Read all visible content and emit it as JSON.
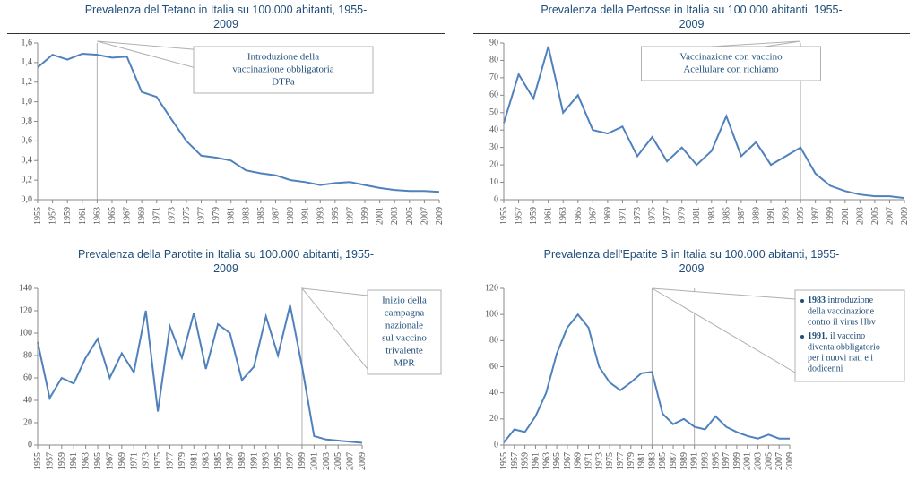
{
  "global": {
    "line_color": "#4f81bd",
    "line_width": 2,
    "title_color": "#1f4e79",
    "axis_color": "#888888",
    "grid_color": "#e0e0e0",
    "callout_border": "#b0b0b0",
    "font_family": "Verdana",
    "title_fontsize": 12.5,
    "tick_fontsize": 10,
    "callout_fontsize": 11,
    "years": [
      1955,
      1957,
      1959,
      1961,
      1963,
      1965,
      1967,
      1969,
      1971,
      1973,
      1975,
      1977,
      1979,
      1981,
      1983,
      1985,
      1987,
      1989,
      1991,
      1993,
      1995,
      1997,
      1999,
      2001,
      2003,
      2005,
      2007,
      2009
    ]
  },
  "charts": [
    {
      "id": "tetano",
      "title_l1": "Prevalenza del Tetano in Italia su 100.000 abitanti, 1955-",
      "title_l2": "2009",
      "type": "line",
      "ylim": [
        0.0,
        1.6
      ],
      "ytick_step": 0.2,
      "y_decimals": 1,
      "values": [
        1.35,
        1.48,
        1.43,
        1.49,
        1.48,
        1.45,
        1.46,
        1.1,
        1.05,
        0.82,
        0.6,
        0.45,
        0.43,
        0.4,
        0.3,
        0.27,
        0.25,
        0.2,
        0.18,
        0.15,
        0.17,
        0.18,
        0.15,
        0.12,
        0.1,
        0.09,
        0.09,
        0.08
      ],
      "vlines": [
        1963
      ],
      "callout": {
        "kind": "center",
        "lines": [
          "Introduzione della",
          "vaccinazione obbligatoria",
          "DTPa"
        ]
      }
    },
    {
      "id": "pertosse",
      "title_l1": "Prevalenza della Pertosse in Italia su 100.000 abitanti, 1955-",
      "title_l2": "2009",
      "type": "line",
      "ylim": [
        0,
        90
      ],
      "ytick_step": 10,
      "y_decimals": 0,
      "values": [
        44,
        72,
        58,
        88,
        50,
        60,
        40,
        38,
        42,
        25,
        36,
        22,
        30,
        20,
        28,
        48,
        25,
        33,
        20,
        25,
        30,
        15,
        8,
        5,
        3,
        2,
        2,
        1
      ],
      "vlines": [
        1995
      ],
      "callout": {
        "kind": "center",
        "lines": [
          "Vaccinazione con vaccino",
          "Acellulare con richiamo"
        ]
      }
    },
    {
      "id": "parotite",
      "title_l1": "Prevalenza della Parotite in Italia su 100.000 abitanti, 1955-",
      "title_l2": "2009",
      "type": "line",
      "ylim": [
        0,
        140
      ],
      "ytick_step": 20,
      "y_decimals": 0,
      "values": [
        92,
        42,
        60,
        55,
        78,
        95,
        60,
        82,
        65,
        120,
        30,
        106,
        78,
        118,
        68,
        108,
        100,
        58,
        70,
        115,
        80,
        125,
        70,
        8,
        5,
        4,
        3,
        2
      ],
      "vlines": [
        1999
      ],
      "callout": {
        "kind": "right",
        "lines": [
          "Inizio della",
          "campagna",
          "nazionale",
          "sul vaccino",
          "trivalente",
          "MPR"
        ]
      }
    },
    {
      "id": "epatite",
      "title_l1": "Prevalenza dell'Epatite B in Italia su 100.000 abitanti, 1955-",
      "title_l2": "2009",
      "type": "line",
      "ylim": [
        0,
        120
      ],
      "ytick_step": 20,
      "y_decimals": 0,
      "values": [
        2,
        12,
        10,
        22,
        40,
        70,
        90,
        100,
        90,
        60,
        48,
        42,
        48,
        55,
        56,
        24,
        16,
        20,
        14,
        12,
        22,
        14,
        10,
        7,
        5,
        8,
        5,
        5
      ],
      "vlines": [
        1983,
        1991
      ],
      "callout": {
        "kind": "bullets",
        "items": [
          {
            "bold": "1983",
            "text": "introduzione della vaccinazione contro il virus Hbv"
          },
          {
            "bold": "1991,",
            "text": "il vaccino diventa obbligatorio per i nuovi nati e i dodicenni"
          }
        ]
      }
    }
  ]
}
